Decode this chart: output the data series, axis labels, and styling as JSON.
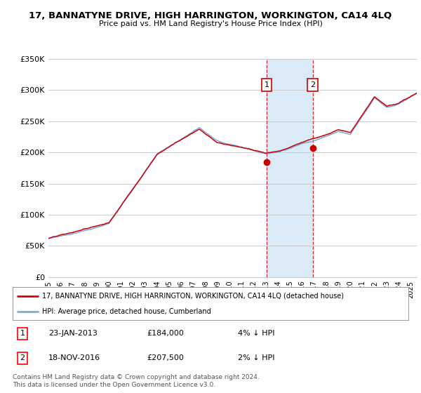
{
  "title": "17, BANNATYNE DRIVE, HIGH HARRINGTON, WORKINGTON, CA14 4LQ",
  "subtitle": "Price paid vs. HM Land Registry's House Price Index (HPI)",
  "ylabel_ticks": [
    "£0",
    "£50K",
    "£100K",
    "£150K",
    "£200K",
    "£250K",
    "£300K",
    "£350K"
  ],
  "ylim": [
    0,
    350000
  ],
  "xlim_start": 1995.0,
  "xlim_end": 2025.5,
  "red_line_color": "#cc0000",
  "blue_line_color": "#7aabdb",
  "shade_color": "#daeaf7",
  "grid_color": "#cccccc",
  "background_color": "#ffffff",
  "transaction1_x": 2013.07,
  "transaction1_y": 184000,
  "transaction2_x": 2016.88,
  "transaction2_y": 207500,
  "shade_x1": 2013.07,
  "shade_x2": 2016.88,
  "legend_red": "17, BANNATYNE DRIVE, HIGH HARRINGTON, WORKINGTON, CA14 4LQ (detached house)",
  "legend_blue": "HPI: Average price, detached house, Cumberland",
  "table_rows": [
    [
      "1",
      "23-JAN-2013",
      "£184,000",
      "4% ↓ HPI"
    ],
    [
      "2",
      "18-NOV-2016",
      "£207,500",
      "2% ↓ HPI"
    ]
  ],
  "footnote": "Contains HM Land Registry data © Crown copyright and database right 2024.\nThis data is licensed under the Open Government Licence v3.0.",
  "xticks": [
    1995,
    1996,
    1997,
    1998,
    1999,
    2000,
    2001,
    2002,
    2003,
    2004,
    2005,
    2006,
    2007,
    2008,
    2009,
    2010,
    2011,
    2012,
    2013,
    2014,
    2015,
    2016,
    2017,
    2018,
    2019,
    2020,
    2021,
    2022,
    2023,
    2024,
    2025
  ]
}
